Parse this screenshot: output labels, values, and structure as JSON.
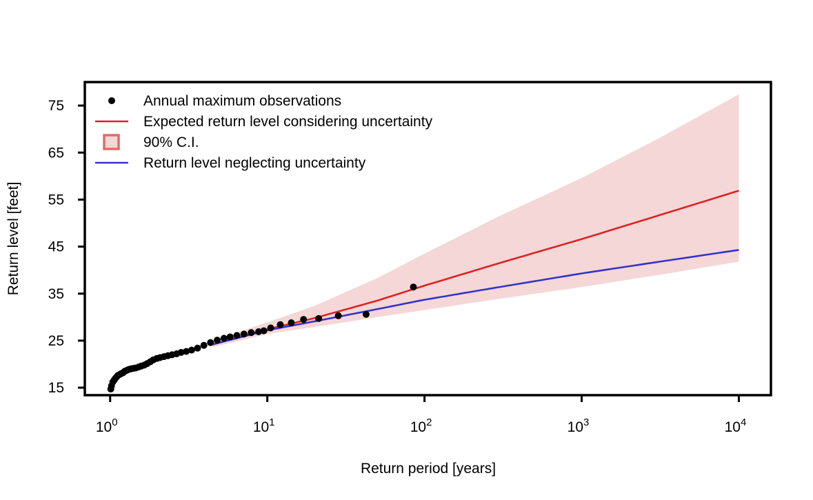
{
  "chart_data": {
    "type": "scatter",
    "title": "",
    "xlabel": "Return period [years]",
    "ylabel": "Return level [feet]",
    "x_scale": "log",
    "xlim": [
      0.69,
      16000
    ],
    "ylim": [
      13.4,
      80
    ],
    "x_ticks": [
      1,
      10,
      100,
      1000,
      10000
    ],
    "x_tick_labels": [
      {
        "base": "10",
        "exp": "0"
      },
      {
        "base": "10",
        "exp": "1"
      },
      {
        "base": "10",
        "exp": "2"
      },
      {
        "base": "10",
        "exp": "3"
      },
      {
        "base": "10",
        "exp": "4"
      }
    ],
    "y_ticks": [
      15,
      25,
      35,
      45,
      55,
      65,
      75
    ],
    "y_tick_labels": [
      "15",
      "25",
      "35",
      "45",
      "55",
      "65",
      "75"
    ],
    "grid": false,
    "legend_position": "top-left",
    "legend": [
      {
        "label": "Annual maximum observations",
        "symbol": "point",
        "color": "#000000"
      },
      {
        "label": "Expected return level considering uncertainty",
        "symbol": "line",
        "color": "#dd2222"
      },
      {
        "label": "90% C.I.",
        "symbol": "box",
        "color": "#e36b6b"
      },
      {
        "label": "Return level neglecting uncertainty",
        "symbol": "line",
        "color": "#3333cc"
      }
    ],
    "series": [
      {
        "name": "Annual maximum observations",
        "type": "scatter",
        "color": "#000000",
        "x": [
          1.01,
          1.02,
          1.04,
          1.06,
          1.08,
          1.1,
          1.12,
          1.15,
          1.18,
          1.21,
          1.24,
          1.28,
          1.32,
          1.36,
          1.41,
          1.46,
          1.52,
          1.58,
          1.65,
          1.72,
          1.8,
          1.88,
          1.98,
          2.08,
          2.2,
          2.33,
          2.48,
          2.65,
          2.83,
          3.05,
          3.3,
          3.6,
          3.95,
          4.35,
          4.8,
          5.3,
          5.8,
          6.4,
          7.1,
          7.9,
          8.8,
          9.5,
          10.5,
          12.1,
          14.2,
          17.0,
          21.2,
          28.3,
          42.5,
          85.0
        ],
        "y": [
          14.7,
          15.4,
          16.2,
          16.6,
          17.0,
          17.3,
          17.6,
          17.8,
          18.0,
          18.2,
          18.5,
          18.7,
          18.9,
          19.0,
          19.1,
          19.2,
          19.4,
          19.6,
          19.8,
          20.1,
          20.5,
          20.9,
          21.2,
          21.4,
          21.6,
          21.8,
          22.0,
          22.2,
          22.5,
          22.7,
          23.0,
          23.4,
          24.0,
          24.6,
          25.1,
          25.5,
          25.8,
          26.1,
          26.4,
          26.7,
          26.9,
          27.1,
          27.7,
          28.4,
          28.8,
          29.5,
          29.7,
          30.3,
          30.6,
          36.4
        ]
      },
      {
        "name": "Expected return level considering uncertainty",
        "type": "line",
        "color": "#dd2222",
        "x": [
          4.5,
          10,
          20,
          50,
          100,
          300,
          1000,
          3000,
          10000
        ],
        "y": [
          24.2,
          27.4,
          29.8,
          33.5,
          36.7,
          41.5,
          46.6,
          51.5,
          56.9
        ]
      },
      {
        "name": "Return level neglecting uncertainty",
        "type": "line",
        "color": "#3333cc",
        "x": [
          4.5,
          10,
          20,
          50,
          100,
          300,
          1000,
          3000,
          10000
        ],
        "y": [
          24.2,
          27.2,
          29.1,
          31.7,
          33.7,
          36.4,
          39.3,
          41.7,
          44.3
        ]
      }
    ],
    "band": {
      "name": "90% C.I.",
      "color": "#f5d7d7",
      "x": [
        4.5,
        10,
        20,
        50,
        100,
        300,
        1000,
        3000,
        10000
      ],
      "lower": [
        23.6,
        26.4,
        27.9,
        30.0,
        31.5,
        33.9,
        36.4,
        38.9,
        41.8
      ],
      "upper": [
        25.0,
        28.9,
        32.4,
        38.3,
        43.5,
        51.5,
        59.6,
        67.8,
        77.4
      ]
    }
  }
}
